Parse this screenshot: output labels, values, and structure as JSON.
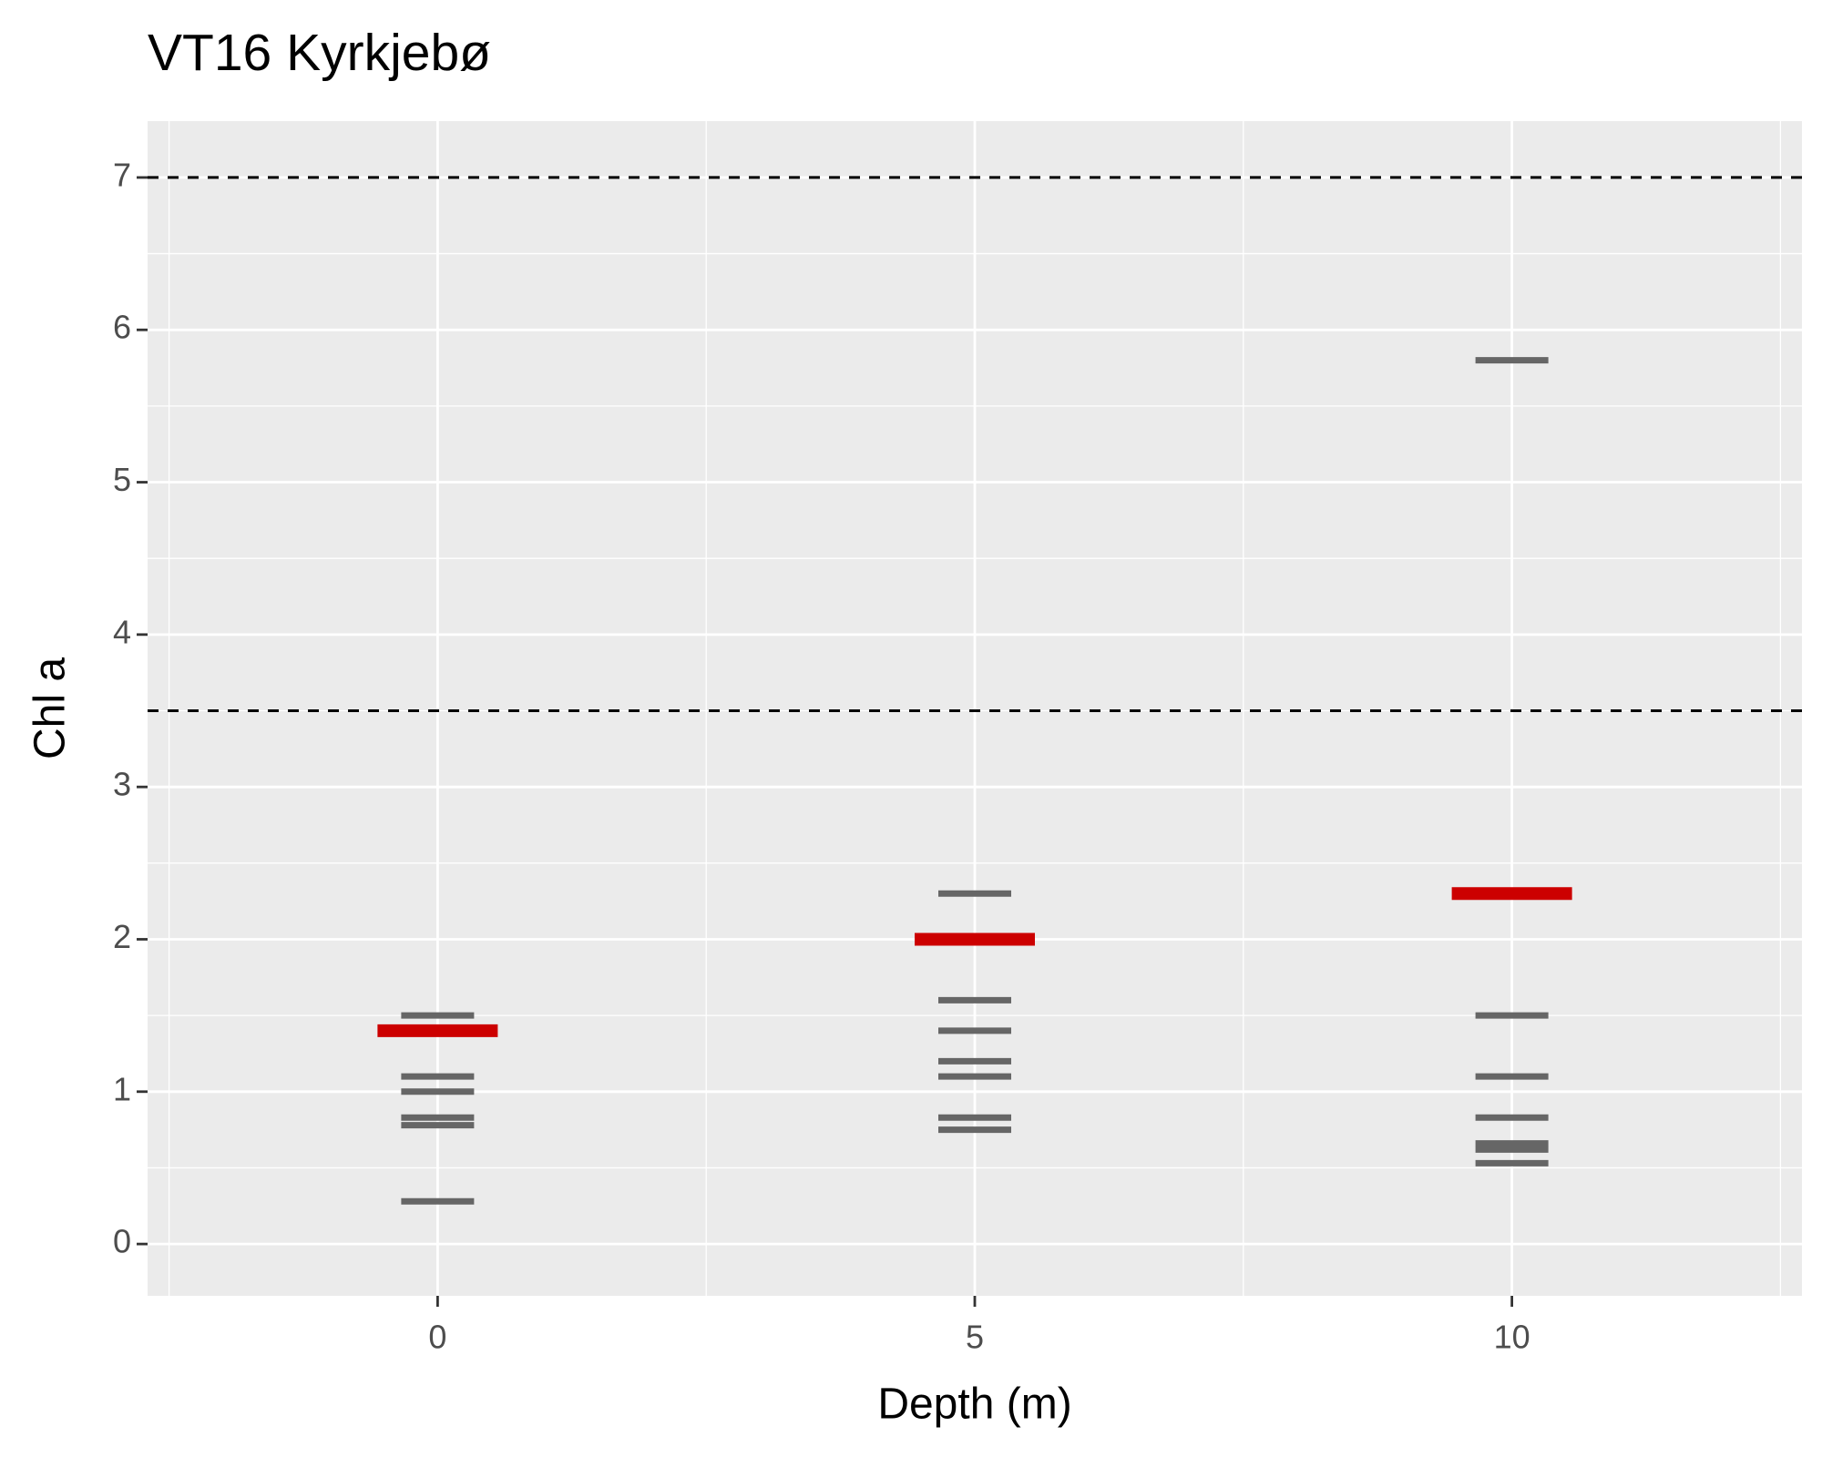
{
  "chart_data": {
    "type": "point",
    "title": "VT16 Kyrkjebø",
    "x_label": "Depth (m)",
    "y_label": "Chl a",
    "xlim": [
      -2.7,
      12.7
    ],
    "xticks": [
      0,
      5,
      10
    ],
    "xminor": [
      -2.5,
      2.5,
      7.5,
      12.5
    ],
    "ylim": [
      -0.34,
      7.37
    ],
    "yticks": [
      0,
      1,
      2,
      3,
      4,
      5,
      6,
      7
    ],
    "yminor": [
      0.5,
      1.5,
      2.5,
      3.5,
      4.5,
      5.5,
      6.5
    ],
    "grid": true,
    "background": "#ebebeb",
    "hlines": [
      7,
      3.5
    ],
    "series": [
      {
        "color": "#666666",
        "x": [
          0,
          0,
          0,
          0,
          0,
          0,
          5,
          5,
          5,
          5,
          5,
          5,
          5,
          10,
          10,
          10,
          10,
          10,
          10,
          10
        ],
        "values": [
          1.5,
          1.1,
          1.0,
          0.83,
          0.78,
          0.28,
          2.3,
          1.6,
          1.4,
          1.2,
          1.1,
          0.83,
          0.75,
          5.8,
          1.5,
          1.1,
          0.83,
          0.66,
          0.62,
          0.53
        ]
      },
      {
        "color": "#cc0000",
        "x": [
          0,
          5,
          10
        ],
        "values": [
          1.4,
          2.0,
          2.3
        ]
      }
    ]
  }
}
